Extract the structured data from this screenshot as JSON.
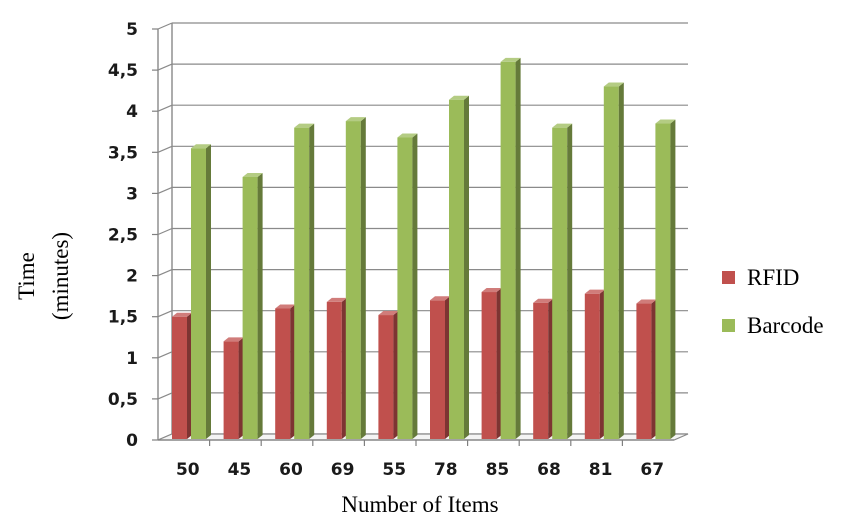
{
  "chart_data": {
    "type": "bar",
    "title": "",
    "xlabel": "Number of Items",
    "ylabel_lines": [
      "Time",
      "(minutes)"
    ],
    "ylim": [
      0,
      5
    ],
    "yticks": [
      "0",
      "0,5",
      "1",
      "1,5",
      "2",
      "2,5",
      "3",
      "3,5",
      "4",
      "4,5",
      "5"
    ],
    "categories": [
      "50",
      "45",
      "60",
      "69",
      "55",
      "78",
      "85",
      "68",
      "81",
      "67"
    ],
    "series": [
      {
        "name": "RFID",
        "color": "#c0504d",
        "values": [
          1.5,
          1.2,
          1.6,
          1.68,
          1.52,
          1.7,
          1.8,
          1.67,
          1.78,
          1.66
        ]
      },
      {
        "name": "Barcode",
        "color": "#9bbb59",
        "values": [
          3.55,
          3.2,
          3.8,
          3.88,
          3.68,
          4.14,
          4.6,
          3.8,
          4.3,
          3.85
        ]
      }
    ],
    "grid": true,
    "style": "3d-column",
    "legend_position": "right"
  }
}
